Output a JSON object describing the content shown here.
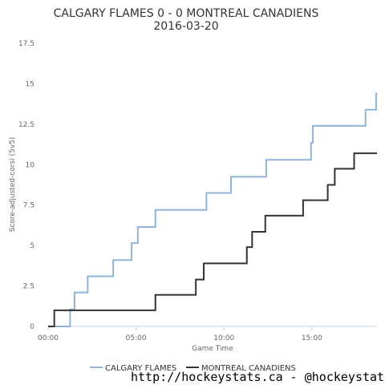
{
  "chart_data": {
    "type": "line",
    "title": "CALGARY FLAMES 0 - 0 MONTREAL CANADIENS",
    "subtitle": "2016-03-20",
    "xlabel": "Game Time",
    "ylabel": "Score-adjusted-corsi (5v5)",
    "xlim": [
      0,
      18.7
    ],
    "ylim": [
      0,
      17.5
    ],
    "x_ticks": [
      0,
      5,
      10,
      15
    ],
    "x_tick_labels": [
      "00:00",
      "05:00",
      "10:00",
      "15:00"
    ],
    "y_ticks": [
      0,
      2.5,
      5,
      7.5,
      10,
      12.5,
      15,
      17.5
    ],
    "y_tick_labels": [
      "0",
      "2.5",
      "5",
      "7.5",
      "10",
      "12.5",
      "15",
      "17.5"
    ],
    "grid": false,
    "legend_position": "bottom",
    "step": true,
    "series": [
      {
        "name": "CALGARY FLAMES",
        "color": "#8fb4d8",
        "x": [
          0,
          1.25,
          1.25,
          1.5,
          2.25,
          3.7,
          4.75,
          5.1,
          6.1,
          9.0,
          10.4,
          12.4,
          14.95,
          15.05,
          18.05,
          18.65,
          18.7
        ],
        "y": [
          0,
          0,
          1.05,
          2.1,
          3.1,
          4.1,
          5.15,
          6.15,
          7.2,
          8.25,
          9.25,
          10.3,
          11.35,
          12.4,
          13.4,
          14.4,
          14.4
        ]
      },
      {
        "name": "MONTREAL CANADIENS",
        "color": "#333333",
        "x": [
          0,
          0.35,
          6.1,
          8.4,
          8.85,
          11.3,
          11.6,
          12.35,
          14.5,
          15.9,
          16.3,
          17.4,
          18.7
        ],
        "y": [
          0,
          1.0,
          1.95,
          2.9,
          3.9,
          4.9,
          5.85,
          6.85,
          7.8,
          8.75,
          9.75,
          10.7,
          10.7
        ]
      }
    ]
  },
  "credit": "http://hockeystats.ca - @hockeystatsca"
}
